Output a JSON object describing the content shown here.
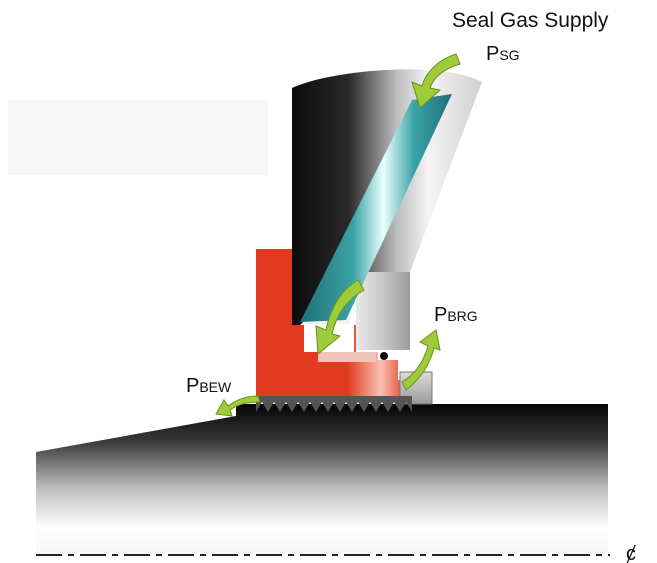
{
  "labels": {
    "seal_gas_supply": "Seal Gas Supply",
    "p_sg": {
      "main": "P",
      "sub": "SG"
    },
    "p_brg": {
      "main": "P",
      "sub": "BRG"
    },
    "p_bew": {
      "main": "P",
      "sub": "BEW"
    },
    "centerline": "ȼ"
  },
  "colors": {
    "seal_body": "#e23a1e",
    "flow_arrow": "#9ecb3a",
    "gas_channel": "#3aa3a8",
    "metal_dark": "#0a0a0a",
    "metal_light": "#f2f2f2"
  }
}
